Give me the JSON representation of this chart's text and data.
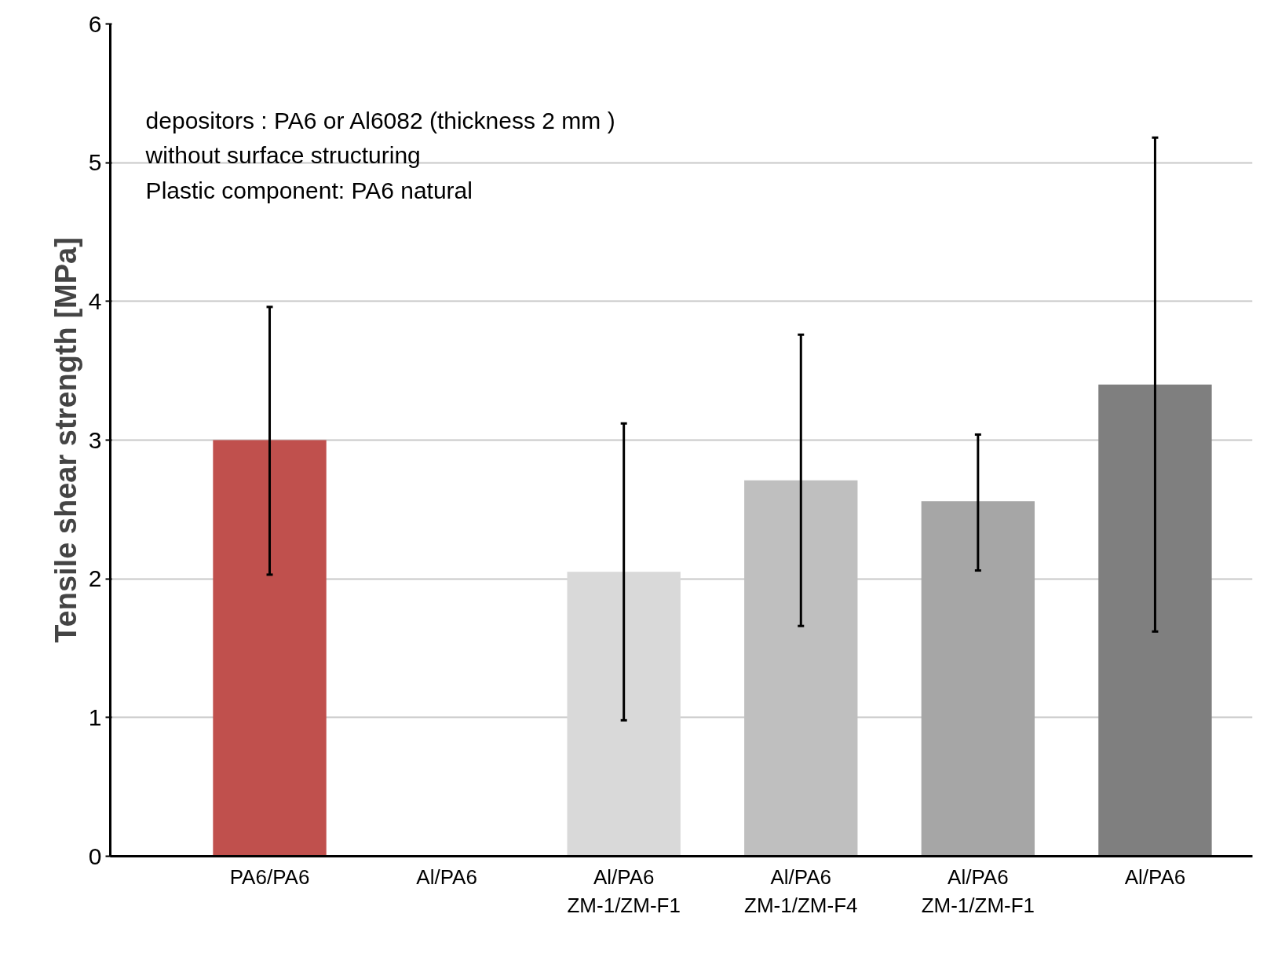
{
  "chart_data": {
    "type": "bar",
    "ylabel": "Tensile shear strength [MPa]",
    "categories": [
      "PA6/PA6",
      "Al/PA6",
      "Al/PA6\nZM-1/ZM-F1",
      "Al/PA6\nZM-1/ZM-F4",
      "Al/PA6\nZM-1/ZM-F1",
      "Al/PA6"
    ],
    "values": [
      3.0,
      0,
      2.05,
      2.71,
      2.56,
      3.4
    ],
    "colors": [
      "#c0504d",
      "#d9d9d9",
      "#d9d9d9",
      "#bfbfbf",
      "#a6a6a6",
      "#7f7f7f"
    ],
    "errors": [
      [
        2.03,
        3.96
      ],
      null,
      [
        0.98,
        3.12
      ],
      [
        1.66,
        3.76
      ],
      [
        2.06,
        3.04
      ],
      [
        1.62,
        5.18
      ]
    ],
    "ylim": [
      0,
      6
    ],
    "yticks": [
      0,
      1,
      2,
      3,
      4,
      5,
      6
    ],
    "grid": "y",
    "annotations": [
      "depositors : PA6 or Al6082 (thickness 2 mm )\n                without surface structuring\nPlastic component: PA6 natural"
    ]
  }
}
